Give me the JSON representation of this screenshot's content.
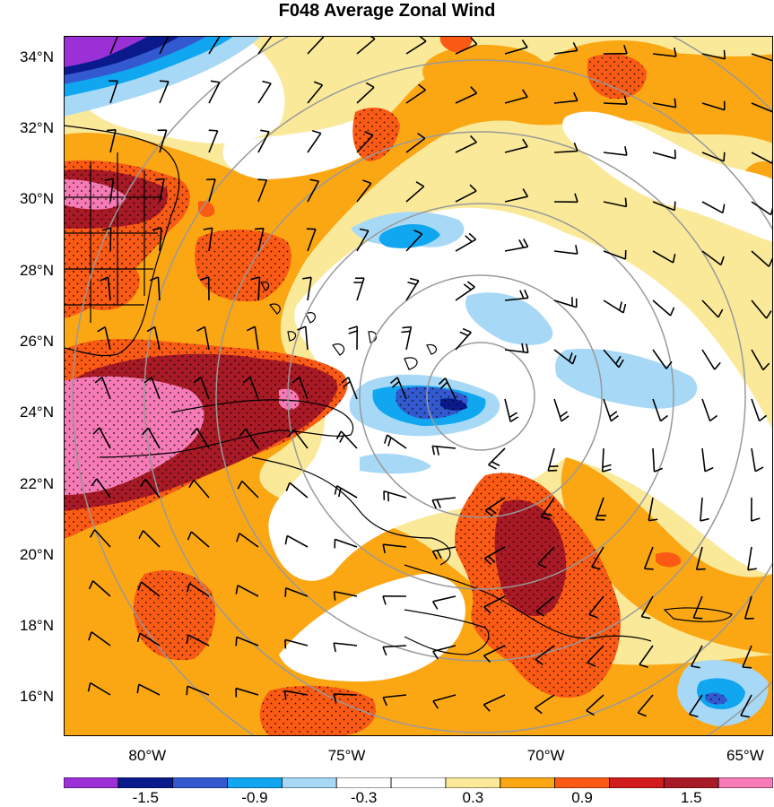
{
  "title": "F048 Average Zonal Wind",
  "y_ticks": [
    {
      "label": "34°N",
      "lat": 34
    },
    {
      "label": "32°N",
      "lat": 32
    },
    {
      "label": "30°N",
      "lat": 30
    },
    {
      "label": "28°N",
      "lat": 28
    },
    {
      "label": "26°N",
      "lat": 26
    },
    {
      "label": "24°N",
      "lat": 24
    },
    {
      "label": "22°N",
      "lat": 22
    },
    {
      "label": "20°N",
      "lat": 20
    },
    {
      "label": "18°N",
      "lat": 18
    },
    {
      "label": "16°N",
      "lat": 16
    }
  ],
  "x_ticks": [
    {
      "label": "80°W",
      "lon": -80
    },
    {
      "label": "75°W",
      "lon": -75
    },
    {
      "label": "70°W",
      "lon": -70
    },
    {
      "label": "65°W",
      "lon": -65
    }
  ],
  "extent": {
    "lon": [
      -82.1,
      -64.3
    ],
    "lat": [
      14.9,
      34.6
    ]
  },
  "colorbar": {
    "colors": [
      "#9b30d6",
      "#0a1a8c",
      "#3359d1",
      "#10a6f0",
      "#a7d9f7",
      "#ffffff",
      "#ffffff",
      "#fbe99a",
      "#fba714",
      "#fb5a14",
      "#d21b1b",
      "#a81a25",
      "#f57ab5"
    ],
    "labels": [
      "-1.5",
      "-0.9",
      "-0.3",
      "0.3",
      "0.9",
      "1.5"
    ]
  },
  "colors": {
    "rings": "#999999",
    "barbs": "#000000",
    "coast": "#000000",
    "stipple": "#000000"
  }
}
